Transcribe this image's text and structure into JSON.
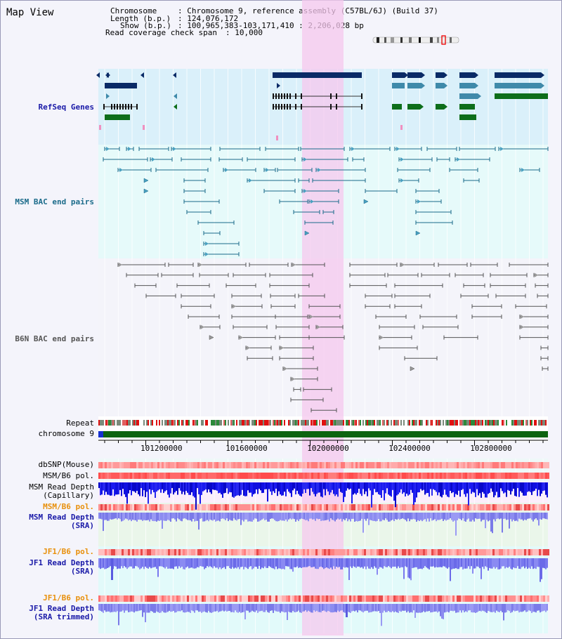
{
  "window": {
    "title": "Map View"
  },
  "info": {
    "chromosome_key": "Chromosome",
    "chromosome_val": ": Chromosome 9, reference assembly (C57BL/6J) (Build 37)",
    "length_key": "Length (b.p.)",
    "length_val": ": 124,076,172",
    "show_key": "Show (b.p.)",
    "show_val": ": 100,965,383-103,171,410 : 2,206,028 bp",
    "span_key": "Read coverage check span",
    "span_val": ": 10,000"
  },
  "tracks": {
    "refseq": "RefSeq Genes",
    "msm_bac": "MSM BAC end pairs",
    "b6n_bac": "B6N BAC end pairs",
    "repeat": "Repeat",
    "chromosome": "chromosome 9",
    "dbsnp": "dbSNP(Mouse)",
    "msm_b6_pol_1": "MSM/B6 pol.",
    "msm_depth_cap_1": "MSM Read Depth",
    "msm_depth_cap_2": "(Capillary)",
    "msm_b6_pol_2": "MSM/B6 pol.",
    "msm_depth_sra_1": "MSM Read Depth",
    "msm_depth_sra_2": "(SRA)",
    "jf1_b6_pol_1": "JF1/B6 pol.",
    "jf1_depth_sra_1": "JF1 Read Depth",
    "jf1_depth_sra_2": "(SRA)",
    "jf1_b6_pol_2": "JF1/B6 pol.",
    "jf1_depth_trim_1": "JF1 Read Depth",
    "jf1_depth_trim_2": "(SRA trimmed)"
  },
  "axis": {
    "ticks": [
      "101200000",
      "101600000",
      "102000000",
      "102400000",
      "102800000"
    ]
  },
  "colors": {
    "refseq_label": "#1a1aa8",
    "msm_label": "#1b6b8a",
    "b6n_label": "#555555",
    "pol_orange": "#e8900c",
    "depth_blue": "#1a1aa8",
    "highlight": "#f6c8ee",
    "gene_navy": "#0a2a66",
    "gene_teal": "#3f8aaa",
    "gene_green": "#0d6e1a",
    "chrom_green": "#0d6410"
  }
}
